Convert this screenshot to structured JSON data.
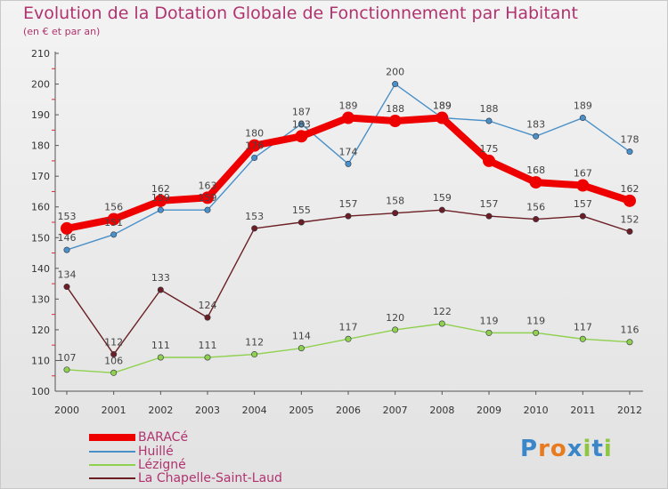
{
  "title": "Evolution de la Dotation Globale de Fonctionnement par Habitant",
  "subtitle": "(en € et par an)",
  "logo_text": "Proxiti",
  "colors": {
    "title": "#b0336f",
    "baracé": "#ee0000",
    "huille": "#4a90c8",
    "lezigne": "#8fd14f",
    "chapelle": "#6b1f24",
    "axis": "#555555"
  },
  "chart_data": {
    "type": "line",
    "title": "Evolution de la Dotation Globale de Fonctionnement par Habitant",
    "subtitle": "(en € et par an)",
    "x": [
      "2000",
      "2001",
      "2002",
      "2003",
      "2004",
      "2005",
      "2006",
      "2007",
      "2008",
      "2009",
      "2010",
      "2011",
      "2012"
    ],
    "ylim": [
      100,
      210
    ],
    "yticks": [
      100,
      110,
      120,
      130,
      140,
      150,
      160,
      170,
      180,
      190,
      200,
      210
    ],
    "grid": false,
    "legend_position": "bottom-left",
    "series": [
      {
        "name": "BARACé",
        "color": "#ee0000",
        "width": 8,
        "marker_radius": 7,
        "values": [
          153,
          156,
          162,
          163,
          180,
          183,
          189,
          188,
          189,
          175,
          168,
          167,
          162
        ]
      },
      {
        "name": "Huillé",
        "color": "#4a90c8",
        "width": 1.4,
        "marker_radius": 3.2,
        "values": [
          146,
          151,
          159,
          159,
          176,
          187,
          174,
          200,
          189,
          188,
          183,
          189,
          178
        ]
      },
      {
        "name": "Lézigné",
        "color": "#8fd14f",
        "width": 1.4,
        "marker_radius": 3.2,
        "values": [
          107,
          106,
          111,
          111,
          112,
          114,
          117,
          120,
          122,
          119,
          119,
          117,
          116
        ]
      },
      {
        "name": "La Chapelle-Saint-Laud",
        "color": "#6b1f24",
        "width": 1.4,
        "marker_radius": 3.2,
        "values": [
          134,
          112,
          133,
          124,
          153,
          155,
          157,
          158,
          159,
          157,
          156,
          157,
          152
        ]
      }
    ]
  }
}
